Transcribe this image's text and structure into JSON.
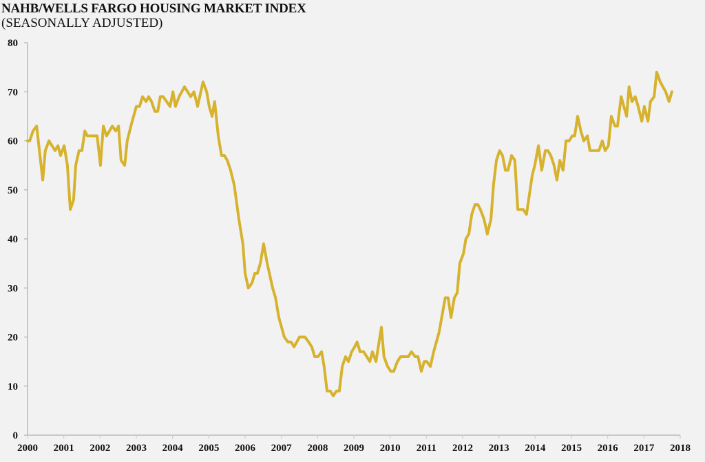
{
  "chart_data": {
    "type": "line",
    "title": "NAHB/WELLS FARGO HOUSING MARKET INDEX",
    "subtitle": "(SEASONALLY ADJUSTED)",
    "xlabel": "",
    "ylabel": "",
    "xlim": [
      2000,
      2018
    ],
    "ylim": [
      0,
      80
    ],
    "grid": false,
    "x_ticks": [
      "2000",
      "2001",
      "2002",
      "2003",
      "2004",
      "2005",
      "2006",
      "2007",
      "2008",
      "2009",
      "2010",
      "2011",
      "2012",
      "2013",
      "2014",
      "2015",
      "2016",
      "2017",
      "2018"
    ],
    "y_ticks": [
      "0",
      "10",
      "20",
      "30",
      "40",
      "50",
      "60",
      "70",
      "80"
    ],
    "line_color": "#d6b22e",
    "series": [
      {
        "name": "Housing Market Index",
        "points": [
          [
            2000.0,
            60
          ],
          [
            2000.06,
            60
          ],
          [
            2000.15,
            62
          ],
          [
            2000.25,
            63
          ],
          [
            2000.42,
            52
          ],
          [
            2000.49,
            58
          ],
          [
            2000.59,
            60
          ],
          [
            2000.76,
            58
          ],
          [
            2000.84,
            59
          ],
          [
            2000.91,
            57
          ],
          [
            2001.01,
            59
          ],
          [
            2001.1,
            55
          ],
          [
            2001.18,
            46
          ],
          [
            2001.27,
            48
          ],
          [
            2001.33,
            55
          ],
          [
            2001.42,
            58
          ],
          [
            2001.5,
            58
          ],
          [
            2001.58,
            62
          ],
          [
            2001.65,
            61
          ],
          [
            2001.92,
            61
          ],
          [
            2002.01,
            55
          ],
          [
            2002.09,
            63
          ],
          [
            2002.18,
            61
          ],
          [
            2002.34,
            63
          ],
          [
            2002.43,
            62
          ],
          [
            2002.51,
            63
          ],
          [
            2002.58,
            56
          ],
          [
            2002.68,
            55
          ],
          [
            2002.75,
            60
          ],
          [
            2002.85,
            63
          ],
          [
            2003.0,
            67
          ],
          [
            2003.09,
            67
          ],
          [
            2003.17,
            69
          ],
          [
            2003.27,
            68
          ],
          [
            2003.34,
            69
          ],
          [
            2003.42,
            68
          ],
          [
            2003.51,
            66
          ],
          [
            2003.59,
            66
          ],
          [
            2003.66,
            69
          ],
          [
            2003.74,
            69
          ],
          [
            2003.93,
            67
          ],
          [
            2004.01,
            70
          ],
          [
            2004.08,
            67
          ],
          [
            2004.18,
            69
          ],
          [
            2004.33,
            71
          ],
          [
            2004.5,
            69
          ],
          [
            2004.59,
            70
          ],
          [
            2004.69,
            67
          ],
          [
            2004.84,
            72
          ],
          [
            2004.94,
            70
          ],
          [
            2005.01,
            67
          ],
          [
            2005.09,
            65
          ],
          [
            2005.16,
            68
          ],
          [
            2005.26,
            61
          ],
          [
            2005.35,
            57
          ],
          [
            2005.43,
            57
          ],
          [
            2005.51,
            56
          ],
          [
            2005.6,
            54
          ],
          [
            2005.7,
            51
          ],
          [
            2005.83,
            44
          ],
          [
            2005.94,
            39
          ],
          [
            2006.0,
            33
          ],
          [
            2006.09,
            30
          ],
          [
            2006.19,
            31
          ],
          [
            2006.27,
            33
          ],
          [
            2006.34,
            33
          ],
          [
            2006.42,
            35
          ],
          [
            2006.51,
            39
          ],
          [
            2006.61,
            35
          ],
          [
            2006.76,
            30
          ],
          [
            2006.84,
            28
          ],
          [
            2006.93,
            24
          ],
          [
            2007.08,
            20
          ],
          [
            2007.18,
            19
          ],
          [
            2007.27,
            19
          ],
          [
            2007.35,
            18
          ],
          [
            2007.5,
            20
          ],
          [
            2007.65,
            20
          ],
          [
            2007.75,
            19
          ],
          [
            2007.84,
            18
          ],
          [
            2007.92,
            16
          ],
          [
            2008.01,
            16
          ],
          [
            2008.11,
            17
          ],
          [
            2008.18,
            14
          ],
          [
            2008.26,
            9
          ],
          [
            2008.35,
            9
          ],
          [
            2008.43,
            8
          ],
          [
            2008.52,
            9
          ],
          [
            2008.6,
            9
          ],
          [
            2008.68,
            14
          ],
          [
            2008.77,
            16
          ],
          [
            2008.85,
            15
          ],
          [
            2008.94,
            17
          ],
          [
            2009.02,
            18
          ],
          [
            2009.09,
            19
          ],
          [
            2009.17,
            17
          ],
          [
            2009.27,
            17
          ],
          [
            2009.44,
            15
          ],
          [
            2009.51,
            17
          ],
          [
            2009.61,
            15
          ],
          [
            2009.76,
            22
          ],
          [
            2009.83,
            16
          ],
          [
            2009.93,
            14
          ],
          [
            2010.02,
            13
          ],
          [
            2010.1,
            13
          ],
          [
            2010.2,
            15
          ],
          [
            2010.29,
            16
          ],
          [
            2010.5,
            16
          ],
          [
            2010.59,
            17
          ],
          [
            2010.69,
            16
          ],
          [
            2010.77,
            16
          ],
          [
            2010.86,
            13
          ],
          [
            2010.94,
            15
          ],
          [
            2011.01,
            15
          ],
          [
            2011.11,
            14
          ],
          [
            2011.2,
            17
          ],
          [
            2011.35,
            21
          ],
          [
            2011.52,
            28
          ],
          [
            2011.6,
            28
          ],
          [
            2011.68,
            24
          ],
          [
            2011.77,
            28
          ],
          [
            2011.85,
            29
          ],
          [
            2011.92,
            35
          ],
          [
            2012.02,
            37
          ],
          [
            2012.09,
            40
          ],
          [
            2012.17,
            41
          ],
          [
            2012.25,
            45
          ],
          [
            2012.34,
            47
          ],
          [
            2012.42,
            47
          ],
          [
            2012.49,
            46
          ],
          [
            2012.59,
            44
          ],
          [
            2012.68,
            41
          ],
          [
            2012.78,
            44
          ],
          [
            2012.85,
            51
          ],
          [
            2012.93,
            56
          ],
          [
            2013.02,
            58
          ],
          [
            2013.1,
            57
          ],
          [
            2013.18,
            54
          ],
          [
            2013.25,
            54
          ],
          [
            2013.35,
            57
          ],
          [
            2013.44,
            56
          ],
          [
            2013.52,
            46
          ],
          [
            2013.67,
            46
          ],
          [
            2013.76,
            45
          ],
          [
            2013.92,
            53
          ],
          [
            2013.99,
            55
          ],
          [
            2014.09,
            59
          ],
          [
            2014.18,
            54
          ],
          [
            2014.28,
            58
          ],
          [
            2014.35,
            58
          ],
          [
            2014.43,
            57
          ],
          [
            2014.52,
            55
          ],
          [
            2014.6,
            52
          ],
          [
            2014.68,
            56
          ],
          [
            2014.77,
            54
          ],
          [
            2014.85,
            60
          ],
          [
            2014.94,
            60
          ],
          [
            2015.02,
            61
          ],
          [
            2015.09,
            61
          ],
          [
            2015.17,
            65
          ],
          [
            2015.26,
            62
          ],
          [
            2015.34,
            60
          ],
          [
            2015.44,
            61
          ],
          [
            2015.51,
            58
          ],
          [
            2015.76,
            58
          ],
          [
            2015.85,
            60
          ],
          [
            2015.93,
            58
          ],
          [
            2016.02,
            59
          ],
          [
            2016.1,
            65
          ],
          [
            2016.2,
            63
          ],
          [
            2016.27,
            63
          ],
          [
            2016.37,
            69
          ],
          [
            2016.52,
            65
          ],
          [
            2016.59,
            71
          ],
          [
            2016.67,
            68
          ],
          [
            2016.76,
            69
          ],
          [
            2016.84,
            67
          ],
          [
            2016.94,
            64
          ],
          [
            2017.01,
            67
          ],
          [
            2017.11,
            64
          ],
          [
            2017.18,
            68
          ],
          [
            2017.28,
            69
          ],
          [
            2017.35,
            74
          ],
          [
            2017.45,
            72
          ],
          [
            2017.6,
            70
          ],
          [
            2017.69,
            68
          ],
          [
            2017.77,
            70
          ]
        ]
      }
    ]
  }
}
